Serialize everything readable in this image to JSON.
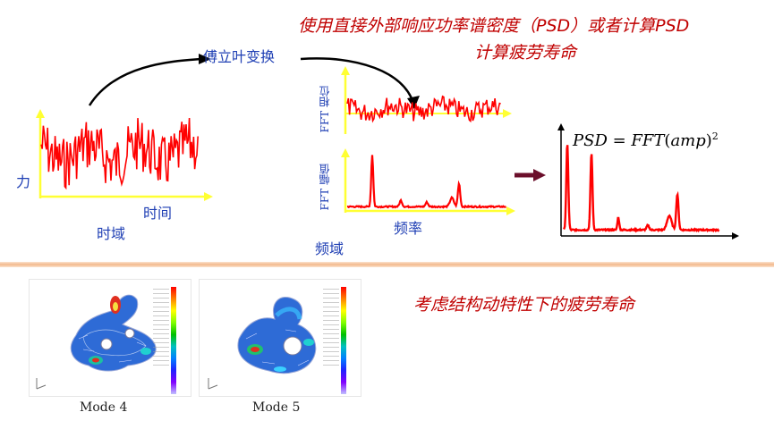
{
  "header": {
    "title_line1": "使用直接外部响应功率谱密度（PSD）或者计算PSD",
    "title_line2": "计算疲劳寿命"
  },
  "diagram": {
    "fourier_label": "傅立叶变换",
    "force_label": "力",
    "time_label": "时间",
    "time_domain_label": "时域",
    "fft_phase_label": "FFT 相位",
    "fft_amplitude_label": "FFT 幅值",
    "frequency_label": "频率",
    "frequency_domain_label": "频域",
    "psd_formula": {
      "lhs": "PSD",
      "rhs": "FFT",
      "arg": "amp",
      "exponent": "2"
    },
    "colors": {
      "signal": "#ff0000",
      "axis": "#ffff33",
      "arrow": "#6b0f2b",
      "title": "#c00000",
      "labels": "#1f3fb4"
    }
  },
  "section2": {
    "title": "考虑结构动特性下的疲劳寿命",
    "modes": [
      {
        "label": "Mode 4"
      },
      {
        "label": "Mode 5"
      }
    ]
  }
}
